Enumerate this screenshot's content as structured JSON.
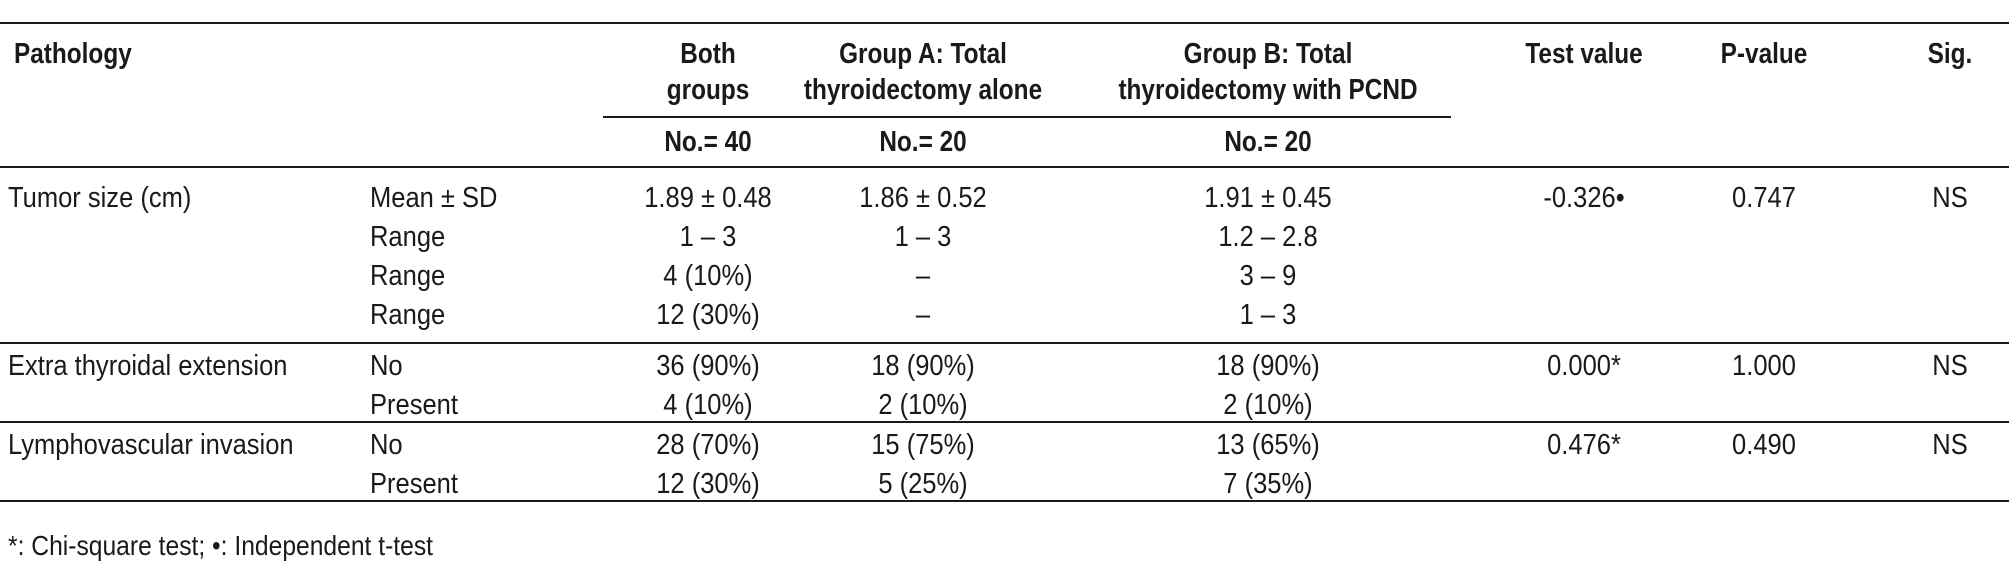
{
  "table": {
    "headers": {
      "pathology": "Pathology",
      "both_line1": "Both",
      "both_line2": "groups",
      "groupA_line1": "Group A: Total",
      "groupA_line2": "thyroidectomy alone",
      "groupB_line1": "Group B: Total",
      "groupB_line2": "thyroidectomy with PCND",
      "test_value": "Test value",
      "p_value": "P-value",
      "sig": "Sig."
    },
    "counts": {
      "both": "No.= 40",
      "groupA": "No.= 20",
      "groupB": "No.= 20"
    },
    "rows": [
      {
        "label": "Tumor size (cm)",
        "subrows": [
          {
            "sub": "Mean ± SD",
            "both": "1.89 ± 0.48",
            "a": "1.86 ± 0.52",
            "b": "1.91 ± 0.45"
          },
          {
            "sub": "Range",
            "both": "1 – 3",
            "a": "1 – 3",
            "b": "1.2 – 2.8"
          },
          {
            "sub": "Range",
            "both": "4 (10%)",
            "a": "–",
            "b": "3 – 9"
          },
          {
            "sub": "Range",
            "both": "12 (30%)",
            "a": "–",
            "b": "1 – 3"
          }
        ],
        "test": "-0.326•",
        "p": "0.747",
        "sig": "NS"
      },
      {
        "label": "Extra thyroidal extension",
        "subrows": [
          {
            "sub": "No",
            "both": "36 (90%)",
            "a": "18 (90%)",
            "b": "18 (90%)"
          },
          {
            "sub": "Present",
            "both": "4 (10%)",
            "a": "2 (10%)",
            "b": "2 (10%)"
          }
        ],
        "test": "0.000*",
        "p": "1.000",
        "sig": "NS"
      },
      {
        "label": "Lymphovascular invasion",
        "subrows": [
          {
            "sub": "No",
            "both": "28 (70%)",
            "a": "15 (75%)",
            "b": "13 (65%)"
          },
          {
            "sub": "Present",
            "both": "12 (30%)",
            "a": "5 (25%)",
            "b": "7 (35%)"
          }
        ],
        "test": "0.476*",
        "p": "0.490",
        "sig": "NS"
      }
    ],
    "footnote": "*: Chi-square test; •: Independent t-test"
  }
}
